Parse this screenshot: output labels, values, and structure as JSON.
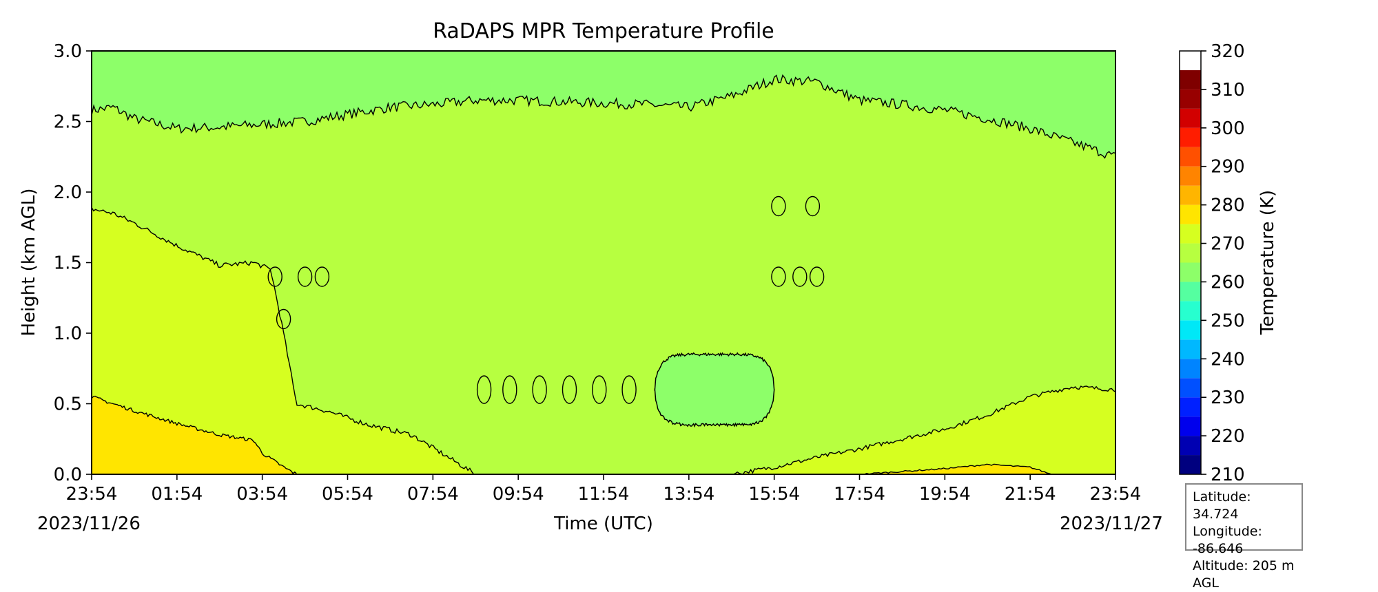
{
  "chart_data": {
    "type": "heatmap",
    "title": "RaDAPS MPR Temperature Profile",
    "xlabel": "Time (UTC)",
    "ylabel": "Height (km AGL)",
    "ylim": [
      0,
      3.0
    ],
    "xlim_hours": [
      0,
      24
    ],
    "x_ticks": [
      "23:54",
      "01:54",
      "03:54",
      "05:54",
      "07:54",
      "09:54",
      "11:54",
      "13:54",
      "15:54",
      "17:54",
      "19:54",
      "21:54",
      "23:54"
    ],
    "y_ticks": [
      "0.0",
      "0.5",
      "1.0",
      "1.5",
      "2.0",
      "2.5",
      "3.0"
    ],
    "date_start": "2023/11/26",
    "date_end": "2023/11/27",
    "colorbar": {
      "label": "Temperature (K)",
      "range": [
        210,
        320
      ],
      "step": 5,
      "ticks": [
        "210",
        "220",
        "230",
        "240",
        "250",
        "260",
        "270",
        "280",
        "290",
        "300",
        "310",
        "320"
      ],
      "colors": [
        "#00007f",
        "#0000b2",
        "#0000ed",
        "#0020ff",
        "#0050ff",
        "#0084ff",
        "#00b8ff",
        "#00e8f7",
        "#27ffcf",
        "#55ffa0",
        "#8dff69",
        "#b7ff40",
        "#d6ff20",
        "#ffe500",
        "#ffb500",
        "#ff8400",
        "#ff5000",
        "#ff1d00",
        "#d20000",
        "#980000",
        "#7f0000"
      ]
    },
    "contour_bands": [
      {
        "range": "265-270 K",
        "color": "#8dff69",
        "region": "above ~2.5 km; mid-day pocket 0.35-0.85 km"
      },
      {
        "range": "270-275 K",
        "color": "#b7ff40",
        "region": "main mid layer"
      },
      {
        "range": "275-280 K",
        "color": "#d6ff20",
        "region": "lower layer, morning and evening"
      },
      {
        "range": "280-285 K",
        "color": "#ffe500",
        "region": "near surface early morning and late evening"
      }
    ],
    "contour_profiles": {
      "top_boundary": [
        [
          0,
          2.58
        ],
        [
          0.5,
          2.6
        ],
        [
          1,
          2.52
        ],
        [
          2,
          2.45
        ],
        [
          3,
          2.46
        ],
        [
          4,
          2.48
        ],
        [
          5,
          2.5
        ],
        [
          6,
          2.55
        ],
        [
          7,
          2.6
        ],
        [
          8,
          2.62
        ],
        [
          9,
          2.65
        ],
        [
          10,
          2.65
        ],
        [
          11,
          2.64
        ],
        [
          12,
          2.63
        ],
        [
          13,
          2.62
        ],
        [
          14,
          2.6
        ],
        [
          15,
          2.68
        ],
        [
          16,
          2.8
        ],
        [
          17,
          2.78
        ],
        [
          18,
          2.65
        ],
        [
          19,
          2.62
        ],
        [
          20,
          2.58
        ],
        [
          21,
          2.52
        ],
        [
          22,
          2.45
        ],
        [
          23,
          2.35
        ],
        [
          24,
          2.25
        ]
      ],
      "upper_warm_boundary": [
        [
          0,
          1.88
        ],
        [
          0.5,
          1.85
        ],
        [
          1,
          1.78
        ],
        [
          1.5,
          1.7
        ],
        [
          2,
          1.62
        ],
        [
          2.5,
          1.55
        ],
        [
          3,
          1.48
        ],
        [
          3.8,
          1.5
        ],
        [
          4.2,
          1.45
        ],
        [
          4.5,
          1.0
        ],
        [
          4.8,
          0.5
        ],
        [
          5.5,
          0.45
        ],
        [
          6.5,
          0.35
        ],
        [
          7.5,
          0.28
        ],
        [
          8.2,
          0.15
        ],
        [
          9,
          0.0
        ]
      ],
      "evening_boundary": [
        [
          15,
          0.0
        ],
        [
          16,
          0.05
        ],
        [
          17,
          0.12
        ],
        [
          18,
          0.18
        ],
        [
          19,
          0.25
        ],
        [
          20,
          0.32
        ],
        [
          21,
          0.42
        ],
        [
          22,
          0.55
        ],
        [
          23,
          0.62
        ],
        [
          24,
          0.6
        ]
      ],
      "lower_warm_boundary": [
        [
          0,
          0.55
        ],
        [
          0.5,
          0.5
        ],
        [
          1,
          0.45
        ],
        [
          2,
          0.36
        ],
        [
          3,
          0.28
        ],
        [
          3.8,
          0.24
        ],
        [
          4,
          0.15
        ],
        [
          4.5,
          0.05
        ],
        [
          4.8,
          0.0
        ]
      ],
      "evening_warm_boundary": [
        [
          18,
          0.0
        ],
        [
          19,
          0.02
        ],
        [
          20,
          0.04
        ],
        [
          21,
          0.07
        ],
        [
          22,
          0.05
        ],
        [
          22.5,
          0.0
        ]
      ]
    }
  },
  "info": {
    "latitude": "Latitude: 34.724",
    "longitude": "Longitude: -86.646",
    "altitude": "Altitude: 205 m AGL"
  }
}
